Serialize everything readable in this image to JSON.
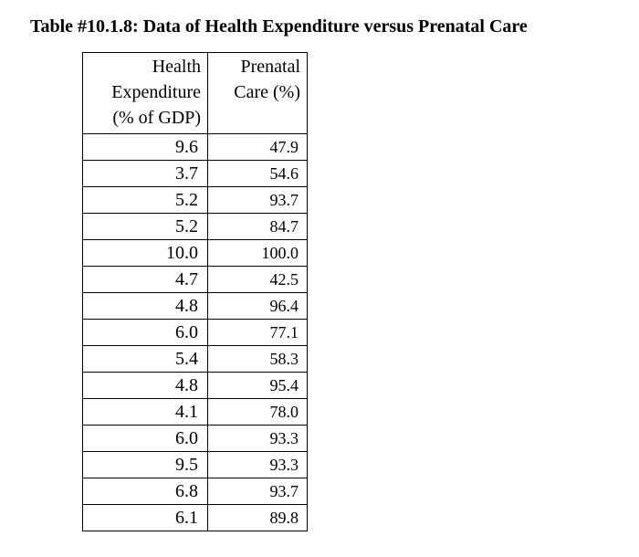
{
  "title": "Table #10.1.8: Data of Health Expenditure versus Prenatal Care",
  "table": {
    "headers": [
      [
        "Health",
        "Expenditure",
        "(% of GDP)"
      ],
      [
        "Prenatal",
        "Care (%)"
      ]
    ],
    "rows": [
      [
        "9.6",
        "47.9"
      ],
      [
        "3.7",
        "54.6"
      ],
      [
        "5.2",
        "93.7"
      ],
      [
        "5.2",
        "84.7"
      ],
      [
        "10.0",
        "100.0"
      ],
      [
        "4.7",
        "42.5"
      ],
      [
        "4.8",
        "96.4"
      ],
      [
        "6.0",
        "77.1"
      ],
      [
        "5.4",
        "58.3"
      ],
      [
        "4.8",
        "95.4"
      ],
      [
        "4.1",
        "78.0"
      ],
      [
        "6.0",
        "93.3"
      ],
      [
        "9.5",
        "93.3"
      ],
      [
        "6.8",
        "93.7"
      ],
      [
        "6.1",
        "89.8"
      ]
    ]
  }
}
